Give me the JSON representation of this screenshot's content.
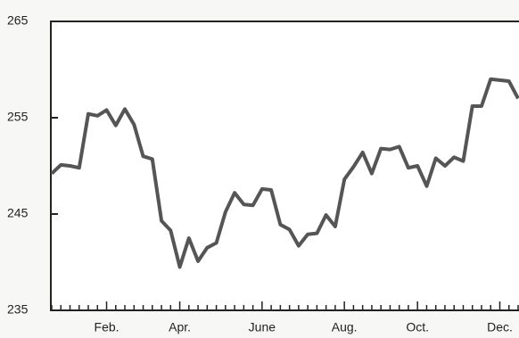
{
  "chart_data": {
    "type": "line",
    "categories": [
      null,
      null,
      null,
      null,
      null,
      null,
      "Feb.",
      null,
      null,
      null,
      null,
      null,
      null,
      null,
      "Apr.",
      null,
      null,
      null,
      null,
      null,
      null,
      null,
      null,
      "June",
      null,
      null,
      null,
      null,
      null,
      null,
      null,
      null,
      "Aug.",
      null,
      null,
      null,
      null,
      null,
      null,
      null,
      "Oct.",
      null,
      null,
      null,
      null,
      null,
      null,
      null,
      null,
      "Dec.",
      null,
      null
    ],
    "series": [
      {
        "color": "#555555",
        "values": [
          249.2,
          250.1,
          250.0,
          249.8,
          255.4,
          255.2,
          255.8,
          254.2,
          255.9,
          254.3,
          251.0,
          250.7,
          244.3,
          243.3,
          239.5,
          242.5,
          240.1,
          241.5,
          242.0,
          245.2,
          247.2,
          246.0,
          245.9,
          247.6,
          247.5,
          243.9,
          243.4,
          241.7,
          242.9,
          243.0,
          244.9,
          243.7,
          248.6,
          249.9,
          251.4,
          249.2,
          251.8,
          251.7,
          252.0,
          249.8,
          250.0,
          247.9,
          250.8,
          250.0,
          250.9,
          250.5,
          256.2,
          256.2,
          259.0,
          258.9,
          258.8,
          257.0
        ]
      }
    ],
    "ylim": [
      235,
      265
    ],
    "yticks": [
      235,
      245,
      255,
      265
    ]
  }
}
